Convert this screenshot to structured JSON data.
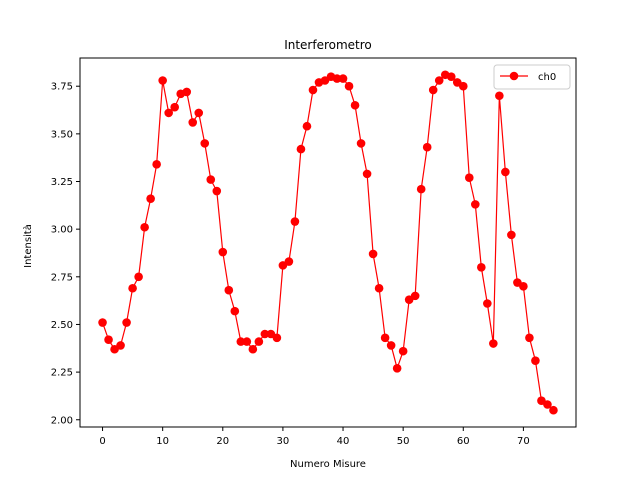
{
  "chart_data": {
    "type": "line",
    "title": "Interferometro",
    "xlabel": "Numero Misure",
    "ylabel": "Intensità",
    "xlim": [
      -3.75,
      78.75
    ],
    "ylim": [
      1.962,
      3.898
    ],
    "xticks": [
      0,
      10,
      20,
      30,
      40,
      50,
      60,
      70
    ],
    "yticks": [
      2.0,
      2.25,
      2.5,
      2.75,
      3.0,
      3.25,
      3.5,
      3.75
    ],
    "ytick_labels": [
      "2.00",
      "2.25",
      "2.50",
      "2.75",
      "3.00",
      "3.25",
      "3.50",
      "3.75"
    ],
    "grid": false,
    "legend_position": "top-right",
    "series": [
      {
        "name": "ch0",
        "color": "#ff0000",
        "marker": "circle",
        "x": [
          0,
          1,
          2,
          3,
          4,
          5,
          6,
          7,
          8,
          9,
          10,
          11,
          12,
          13,
          14,
          15,
          16,
          17,
          18,
          19,
          20,
          21,
          22,
          23,
          24,
          25,
          26,
          27,
          28,
          29,
          30,
          31,
          32,
          33,
          34,
          35,
          36,
          37,
          38,
          39,
          40,
          41,
          42,
          43,
          44,
          45,
          46,
          47,
          48,
          49,
          50,
          51,
          52,
          53,
          54,
          55,
          56,
          57,
          58,
          59,
          60,
          61,
          62,
          63,
          64,
          65,
          66,
          67,
          68,
          69,
          70,
          71,
          72,
          73,
          74,
          75
        ],
        "y": [
          2.51,
          2.42,
          2.37,
          2.39,
          2.51,
          2.69,
          2.75,
          3.01,
          3.16,
          3.34,
          3.78,
          3.61,
          3.64,
          3.71,
          3.72,
          3.56,
          3.61,
          3.45,
          3.26,
          3.2,
          2.88,
          2.68,
          2.57,
          2.41,
          2.41,
          2.37,
          2.41,
          2.45,
          2.45,
          2.43,
          2.81,
          2.83,
          3.04,
          3.42,
          3.54,
          3.73,
          3.77,
          3.78,
          3.8,
          3.79,
          3.79,
          3.75,
          3.65,
          3.45,
          3.29,
          2.87,
          2.69,
          2.43,
          2.39,
          2.27,
          2.36,
          2.63,
          2.65,
          3.21,
          3.43,
          3.73,
          3.78,
          3.81,
          3.8,
          3.77,
          3.75,
          3.27,
          3.13,
          2.8,
          2.61,
          2.4,
          3.7,
          3.3,
          2.97,
          2.72,
          2.7,
          2.43,
          2.31,
          2.1,
          2.08,
          2.05
        ]
      }
    ]
  }
}
